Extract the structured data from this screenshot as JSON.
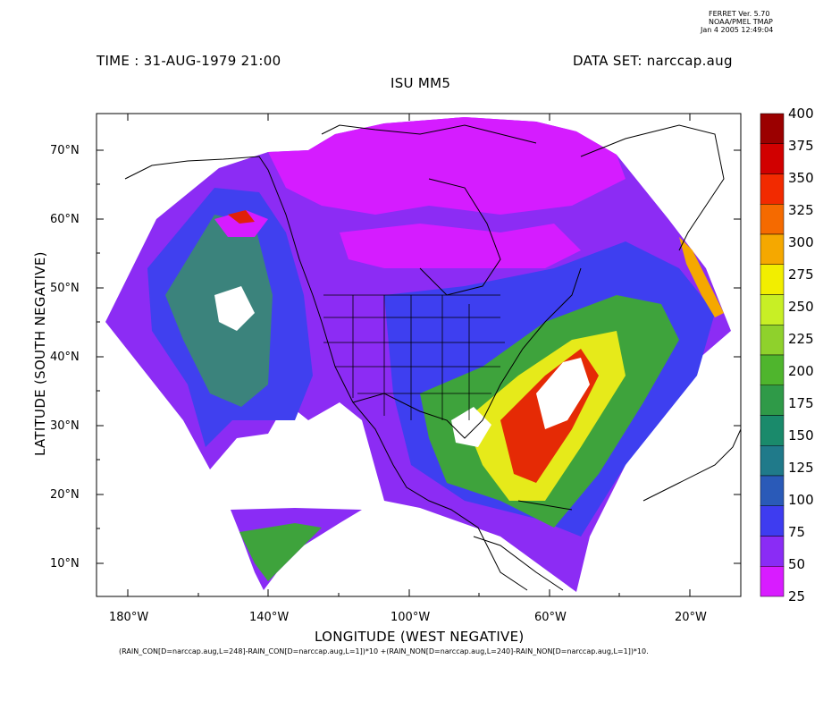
{
  "header": {
    "ferret_lines": [
      "FERRET Ver. 5.70",
      "NOAA/PMEL TMAP",
      "Jan  4 2005 12:49:04"
    ],
    "time": "TIME : 31-AUG-1979 21:00",
    "dataset": "DATA SET: narccap.aug",
    "title": "ISU MM5"
  },
  "axes": {
    "xlabel": "LONGITUDE (WEST NEGATIVE)",
    "ylabel": "LATITUDE (SOUTH NEGATIVE)",
    "xticks": [
      "180°W",
      "140°W",
      "100°W",
      "60°W",
      "20°W"
    ],
    "yticks": [
      "70°N",
      "60°N",
      "50°N",
      "40°N",
      "30°N",
      "20°N",
      "10°N"
    ]
  },
  "formula": "(RAIN_CON[D=narccap.aug,L=248]-RAIN_CON[D=narccap.aug,L=1])*10 +(RAIN_NON[D=narccap.aug,L=240]-RAIN_NON[D=narccap.aug,L=1])*10.",
  "colorbar": {
    "labels": [
      "400",
      "375",
      "350",
      "325",
      "300",
      "275",
      "250",
      "225",
      "200",
      "175",
      "150",
      "125",
      "100",
      "75",
      "50",
      "25"
    ],
    "colors": [
      "#9b0000",
      "#d10000",
      "#f22a00",
      "#f56a00",
      "#f5a800",
      "#f2ee00",
      "#c8ef25",
      "#8fd12c",
      "#4fb52d",
      "#2f9a48",
      "#1a8a6b",
      "#207a8a",
      "#2a5ab8",
      "#3e3cf0",
      "#8a2cf5",
      "#d81cff"
    ]
  },
  "chart_data": {
    "type": "heatmap",
    "title": "ISU MM5",
    "xlabel": "LONGITUDE (WEST NEGATIVE)",
    "ylabel": "LATITUDE (SOUTH NEGATIVE)",
    "color_levels": [
      25,
      50,
      75,
      100,
      125,
      150,
      175,
      200,
      225,
      250,
      275,
      300,
      325,
      350,
      375,
      400
    ],
    "xlim": [
      -189,
      -8
    ],
    "ylim": [
      5,
      75
    ]
  }
}
